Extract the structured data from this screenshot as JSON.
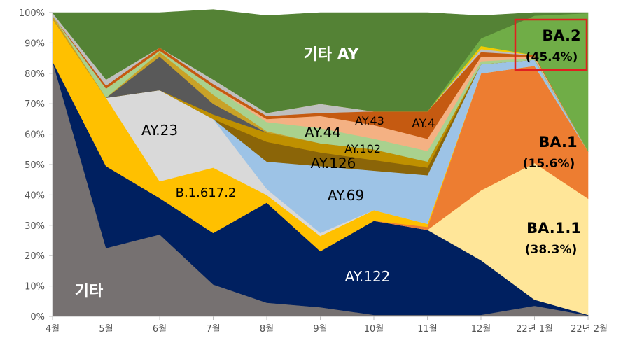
{
  "chart_data": {
    "type": "area",
    "stacked": true,
    "percent": true,
    "ylim": [
      0,
      100
    ],
    "y_ticks": [
      "0%",
      "10%",
      "20%",
      "30%",
      "40%",
      "50%",
      "60%",
      "70%",
      "80%",
      "90%",
      "100%"
    ],
    "categories": [
      "4월",
      "5월",
      "6월",
      "7월",
      "8월",
      "9월",
      "10월",
      "11월",
      "12월",
      "22년 1월",
      "22년 2월"
    ],
    "grid": false,
    "legend": "none",
    "series": [
      {
        "name": "기타",
        "color": "#767171",
        "values": [
          84,
          22.5,
          27,
          10.5,
          4.5,
          3,
          0.5,
          0.5,
          0.5,
          3.5,
          0.3
        ]
      },
      {
        "name": "AY.122",
        "color": "#002060",
        "values": [
          0,
          27,
          12,
          17,
          33,
          18.5,
          31,
          28,
          18,
          2,
          0.2
        ]
      },
      {
        "name": "BA.1.1",
        "color": "#FFE699",
        "values": [
          0,
          0,
          0,
          0,
          0,
          0,
          0,
          0,
          23,
          45,
          38.3
        ]
      },
      {
        "name": "BA.1",
        "color": "#ED7D31",
        "values": [
          0,
          0,
          0,
          0,
          0,
          0,
          0,
          1,
          38.5,
          32,
          15.6
        ]
      },
      {
        "name": "B.1.617.2",
        "color": "#FFC000",
        "values": [
          14,
          22.5,
          5.5,
          21.5,
          2.5,
          5,
          3.5,
          1,
          0,
          0,
          0
        ]
      },
      {
        "name": "AY.23",
        "color": "#D9D9D9",
        "values": [
          0,
          0,
          30,
          16,
          2,
          1,
          0,
          0,
          0,
          0,
          0
        ]
      },
      {
        "name": "AY.69",
        "color": "#9DC3E6",
        "values": [
          0,
          0,
          0,
          0,
          9,
          22,
          13,
          16,
          3,
          2,
          0
        ]
      },
      {
        "name": "AY.126",
        "color": "#8B6508",
        "values": [
          0,
          0,
          0,
          0,
          6.5,
          4.5,
          3.5,
          2.5,
          0,
          0,
          0
        ]
      },
      {
        "name": "AY.102",
        "color": "#BF9000",
        "values": [
          0,
          0,
          0,
          1.5,
          3,
          3,
          3.5,
          2,
          0,
          0,
          0
        ]
      },
      {
        "name": "",
        "color": "#595959",
        "values": [
          0,
          0,
          11,
          3.5,
          0,
          0,
          0,
          0,
          0,
          0,
          0
        ]
      },
      {
        "name": "",
        "color": "#C9A227",
        "values": [
          1,
          0,
          1.5,
          3,
          0.5,
          0,
          0,
          0,
          0,
          0,
          0
        ]
      },
      {
        "name": "AY.44",
        "color": "#A9D18E",
        "values": [
          0,
          3,
          0.5,
          2.5,
          3,
          5,
          3.5,
          3.5,
          1,
          0.5,
          0
        ]
      },
      {
        "name": "AY.43",
        "color": "#F4B183",
        "values": [
          0,
          0,
          0,
          0,
          1,
          4,
          4.5,
          4,
          1.5,
          0.5,
          0
        ]
      },
      {
        "name": "AY.4",
        "color": "#C55A11",
        "values": [
          0,
          1,
          1,
          1,
          1,
          1,
          4.5,
          9,
          1.5,
          0.5,
          0
        ]
      },
      {
        "name": "",
        "color": "#BFBFBF",
        "values": [
          1,
          2,
          0,
          1.5,
          1,
          3,
          0,
          0,
          1,
          0,
          0
        ]
      },
      {
        "name": "",
        "color": "#F2CB00",
        "values": [
          0,
          0,
          0,
          0,
          0,
          0,
          0,
          0,
          1,
          0,
          0
        ]
      },
      {
        "name": "BA.2",
        "color": "#70AD47",
        "values": [
          0,
          0,
          0,
          0,
          0,
          0,
          0,
          0,
          2.5,
          13,
          45.4
        ]
      },
      {
        "name": "기타 AY",
        "color": "#548235",
        "values": [
          0,
          22,
          11.5,
          23,
          32,
          30,
          32.5,
          32.5,
          7.5,
          1,
          0.2
        ]
      }
    ],
    "labels": [
      {
        "text": "기타 AY",
        "color": "#ffffff",
        "bold": true
      },
      {
        "text": "AY.23",
        "color": "#000000"
      },
      {
        "text": "AY.44",
        "color": "#000000"
      },
      {
        "text": "AY.43",
        "color": "#000000"
      },
      {
        "text": "AY.4",
        "color": "#000000"
      },
      {
        "text": "AY.102",
        "color": "#000000"
      },
      {
        "text": "AY.126",
        "color": "#000000"
      },
      {
        "text": "B.1.617.2",
        "color": "#000000"
      },
      {
        "text": "AY.69",
        "color": "#000000"
      },
      {
        "text": "AY.122",
        "color": "#ffffff"
      },
      {
        "text": "기타",
        "color": "#ffffff",
        "bold": true
      },
      {
        "text": "BA.2",
        "color": "#000000",
        "bold": true
      },
      {
        "text": "(45.4%)",
        "color": "#000000",
        "bold": true
      },
      {
        "text": "BA.1",
        "color": "#000000",
        "bold": true
      },
      {
        "text": "(15.6%)",
        "color": "#000000",
        "bold": true
      },
      {
        "text": "BA.1.1",
        "color": "#000000",
        "bold": true
      },
      {
        "text": "(38.3%)",
        "color": "#000000",
        "bold": true
      }
    ],
    "highlight": {
      "target": "BA.2",
      "color": "#E02020"
    }
  }
}
